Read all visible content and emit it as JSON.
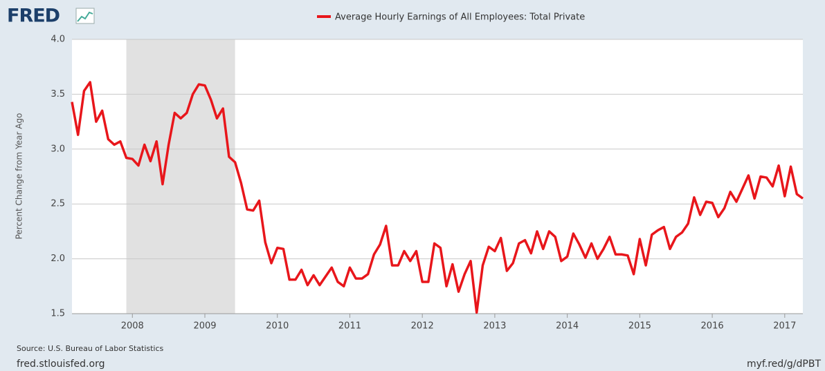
{
  "chart_data": {
    "type": "line",
    "logo": "FRED",
    "y_label": "Percent Change from Year Ago",
    "source": "Source: U.S. Bureau of Labor Statistics",
    "site": "fred.stlouisfed.org",
    "short_url": "myf.red/g/dPBT",
    "x": [
      "2007-03",
      "2007-04",
      "2007-05",
      "2007-06",
      "2007-07",
      "2007-08",
      "2007-09",
      "2007-10",
      "2007-11",
      "2007-12",
      "2008-01",
      "2008-02",
      "2008-03",
      "2008-04",
      "2008-05",
      "2008-06",
      "2008-07",
      "2008-08",
      "2008-09",
      "2008-10",
      "2008-11",
      "2008-12",
      "2009-01",
      "2009-02",
      "2009-03",
      "2009-04",
      "2009-05",
      "2009-06",
      "2009-07",
      "2009-08",
      "2009-09",
      "2009-10",
      "2009-11",
      "2009-12",
      "2010-01",
      "2010-02",
      "2010-03",
      "2010-04",
      "2010-05",
      "2010-06",
      "2010-07",
      "2010-08",
      "2010-09",
      "2010-10",
      "2010-11",
      "2010-12",
      "2011-01",
      "2011-02",
      "2011-03",
      "2011-04",
      "2011-05",
      "2011-06",
      "2011-07",
      "2011-08",
      "2011-09",
      "2011-10",
      "2011-11",
      "2011-12",
      "2012-01",
      "2012-02",
      "2012-03",
      "2012-04",
      "2012-05",
      "2012-06",
      "2012-07",
      "2012-08",
      "2012-09",
      "2012-10",
      "2012-11",
      "2012-12",
      "2013-01",
      "2013-02",
      "2013-03",
      "2013-04",
      "2013-05",
      "2013-06",
      "2013-07",
      "2013-08",
      "2013-09",
      "2013-10",
      "2013-11",
      "2013-12",
      "2014-01",
      "2014-02",
      "2014-03",
      "2014-04",
      "2014-05",
      "2014-06",
      "2014-07",
      "2014-08",
      "2014-09",
      "2014-10",
      "2014-11",
      "2014-12",
      "2015-01",
      "2015-02",
      "2015-03",
      "2015-04",
      "2015-05",
      "2015-06",
      "2015-07",
      "2015-08",
      "2015-09",
      "2015-10",
      "2015-11",
      "2015-12",
      "2016-01",
      "2016-02",
      "2016-03",
      "2016-04",
      "2016-05",
      "2016-06",
      "2016-07",
      "2016-08",
      "2016-09",
      "2016-10",
      "2016-11",
      "2016-12",
      "2017-01",
      "2017-02",
      "2017-03",
      "2017-04"
    ],
    "series": [
      {
        "name": "Average Hourly Earnings of All Employees: Total Private",
        "color": "#e8161b",
        "values": [
          3.43,
          3.13,
          3.53,
          3.61,
          3.25,
          3.35,
          3.09,
          3.04,
          3.07,
          2.92,
          2.91,
          2.85,
          3.04,
          2.89,
          3.07,
          2.68,
          3.04,
          3.33,
          3.28,
          3.33,
          3.5,
          3.59,
          3.58,
          3.45,
          3.28,
          3.37,
          2.93,
          2.88,
          2.69,
          2.45,
          2.44,
          2.53,
          2.15,
          1.96,
          2.1,
          2.09,
          1.81,
          1.81,
          1.9,
          1.76,
          1.85,
          1.76,
          1.84,
          1.92,
          1.79,
          1.75,
          1.92,
          1.82,
          1.82,
          1.86,
          2.04,
          2.13,
          2.3,
          1.94,
          1.94,
          2.07,
          1.98,
          2.07,
          1.79,
          1.79,
          2.14,
          2.1,
          1.75,
          1.95,
          1.7,
          1.86,
          1.98,
          1.51,
          1.94,
          2.11,
          2.07,
          2.19,
          1.89,
          1.96,
          2.14,
          2.17,
          2.05,
          2.25,
          2.09,
          2.25,
          2.2,
          1.98,
          2.02,
          2.23,
          2.13,
          2.01,
          2.14,
          2.0,
          2.09,
          2.2,
          2.04,
          2.04,
          2.03,
          1.86,
          2.18,
          1.94,
          2.22,
          2.26,
          2.29,
          2.09,
          2.2,
          2.24,
          2.32,
          2.56,
          2.4,
          2.52,
          2.51,
          2.38,
          2.46,
          2.61,
          2.52,
          2.64,
          2.76,
          2.55,
          2.75,
          2.74,
          2.66,
          2.85,
          2.57,
          2.84,
          2.59,
          2.55
        ]
      }
    ],
    "xlim": [
      "2007-03",
      "2017-04"
    ],
    "xticks": [
      {
        "value": "2008-01",
        "label": "2008"
      },
      {
        "value": "2009-01",
        "label": "2009"
      },
      {
        "value": "2010-01",
        "label": "2010"
      },
      {
        "value": "2011-01",
        "label": "2011"
      },
      {
        "value": "2012-01",
        "label": "2012"
      },
      {
        "value": "2013-01",
        "label": "2013"
      },
      {
        "value": "2014-01",
        "label": "2014"
      },
      {
        "value": "2015-01",
        "label": "2015"
      },
      {
        "value": "2016-01",
        "label": "2016"
      },
      {
        "value": "2017-01",
        "label": "2017"
      }
    ],
    "ylim": [
      1.5,
      4
    ],
    "yticks": [
      1.5,
      {
        "value": 2,
        "label": "2.0"
      },
      2.5,
      {
        "value": 3,
        "label": "3.0"
      },
      3.5,
      {
        "value": 4,
        "label": "4.0"
      }
    ],
    "grid": true,
    "recessions": [
      {
        "start": "2007-12",
        "end": "2009-06"
      }
    ]
  }
}
